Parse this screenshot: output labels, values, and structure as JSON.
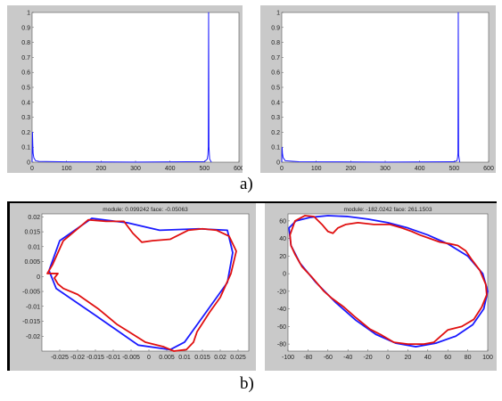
{
  "captions": {
    "a": "a)",
    "b": "b)"
  },
  "colors": {
    "panel": "#c9c9c9",
    "axes": "#ffffff",
    "series_blue": "#1a1aff",
    "series_red": "#e01010"
  },
  "chart_data": [
    {
      "id": "a-left",
      "type": "line",
      "title": "",
      "xlim": [
        0,
        600
      ],
      "ylim": [
        0,
        1
      ],
      "xticks": [
        "0",
        "100",
        "200",
        "300",
        "400",
        "500",
        "600"
      ],
      "yticks": [
        "0",
        "0.1",
        "0.2",
        "0.3",
        "0.4",
        "0.5",
        "0.6",
        "0.7",
        "0.8",
        "0.9",
        "1"
      ],
      "series": [
        {
          "color": "#1a1aff",
          "points": [
            [
              0,
              0.0
            ],
            [
              1,
              0.2
            ],
            [
              2,
              0.12
            ],
            [
              3,
              0.06
            ],
            [
              5,
              0.03
            ],
            [
              10,
              0.01
            ],
            [
              20,
              0.005
            ],
            [
              100,
              0.002
            ],
            [
              300,
              0.001
            ],
            [
              500,
              0.004
            ],
            [
              508,
              0.02
            ],
            [
              510,
              0.05
            ],
            [
              511,
              0.1
            ],
            [
              512,
              1.0
            ],
            [
              513,
              0.1
            ],
            [
              515,
              0.02
            ],
            [
              520,
              0.0
            ]
          ]
        }
      ]
    },
    {
      "id": "a-right",
      "type": "line",
      "title": "",
      "xlim": [
        0,
        600
      ],
      "ylim": [
        0,
        1
      ],
      "xticks": [
        "0",
        "100",
        "200",
        "300",
        "400",
        "500",
        "600"
      ],
      "yticks": [
        "0",
        "0.1",
        "0.2",
        "0.3",
        "0.4",
        "0.5",
        "0.6",
        "0.7",
        "0.8",
        "0.9",
        "1"
      ],
      "series": [
        {
          "color": "#1a1aff",
          "points": [
            [
              0,
              0.0
            ],
            [
              1,
              0.1
            ],
            [
              2,
              0.06
            ],
            [
              4,
              0.03
            ],
            [
              10,
              0.01
            ],
            [
              50,
              0.003
            ],
            [
              300,
              0.001
            ],
            [
              500,
              0.003
            ],
            [
              508,
              0.01
            ],
            [
              510,
              0.03
            ],
            [
              511,
              0.06
            ],
            [
              512,
              1.0
            ],
            [
              513,
              0.05
            ],
            [
              516,
              0.0
            ]
          ]
        }
      ]
    },
    {
      "id": "b-left",
      "type": "line",
      "title": "module: 0.099242 face: -0.05063",
      "xlim": [
        -0.03,
        0.028
      ],
      "ylim": [
        -0.025,
        0.021
      ],
      "xticks": [
        "-0.025",
        "-0.02",
        "-0.015",
        "-0.01",
        "-0.005",
        "0",
        "0.005",
        "0.01",
        "0.015",
        "0.02",
        "0.025"
      ],
      "yticks": [
        "0.02",
        "0.015",
        "0.01",
        "0.005",
        "0",
        "-0.005",
        "-0.01",
        "-0.015",
        "-0.02"
      ],
      "series": [
        {
          "color": "#1a1aff",
          "closed": true,
          "points": [
            [
              -0.028,
              0.002
            ],
            [
              -0.025,
              0.012
            ],
            [
              -0.016,
              0.0195
            ],
            [
              -0.006,
              0.018
            ],
            [
              0.003,
              0.0155
            ],
            [
              0.014,
              0.016
            ],
            [
              0.022,
              0.0155
            ],
            [
              0.0235,
              0.008
            ],
            [
              0.022,
              -0.002
            ],
            [
              0.016,
              -0.012
            ],
            [
              0.01,
              -0.022
            ],
            [
              0.006,
              -0.0245
            ],
            [
              -0.003,
              -0.023
            ],
            [
              -0.015,
              -0.013
            ],
            [
              -0.026,
              -0.004
            ]
          ]
        },
        {
          "color": "#e01010",
          "closed": true,
          "points": [
            [
              -0.027,
              0.004
            ],
            [
              -0.024,
              0.012
            ],
            [
              -0.017,
              0.019
            ],
            [
              -0.012,
              0.0185
            ],
            [
              -0.007,
              0.0185
            ],
            [
              -0.0045,
              0.0145
            ],
            [
              -0.002,
              0.0115
            ],
            [
              0.001,
              0.012
            ],
            [
              0.006,
              0.0125
            ],
            [
              0.011,
              0.0155
            ],
            [
              0.015,
              0.016
            ],
            [
              0.019,
              0.0155
            ],
            [
              0.0225,
              0.0135
            ],
            [
              0.0245,
              0.0085
            ],
            [
              0.023,
              0.001
            ],
            [
              0.02,
              -0.007
            ],
            [
              0.017,
              -0.012
            ],
            [
              0.0135,
              -0.0185
            ],
            [
              0.0125,
              -0.022
            ],
            [
              0.0105,
              -0.0245
            ],
            [
              0.007,
              -0.025
            ],
            [
              0.004,
              -0.0235
            ],
            [
              -0.001,
              -0.022
            ],
            [
              -0.005,
              -0.019
            ],
            [
              -0.009,
              -0.016
            ],
            [
              -0.014,
              -0.011
            ],
            [
              -0.02,
              -0.006
            ],
            [
              -0.024,
              -0.004
            ],
            [
              -0.0255,
              -0.0025
            ],
            [
              -0.0265,
              -0.0005
            ],
            [
              -0.0255,
              0.001
            ],
            [
              -0.0285,
              0.001
            ]
          ]
        }
      ]
    },
    {
      "id": "b-right",
      "type": "line",
      "title": "module: -182.0242 face: 261.1503",
      "xlim": [
        -100,
        100
      ],
      "ylim": [
        -88,
        68
      ],
      "xticks": [
        "-100",
        "-80",
        "-60",
        "-40",
        "-20",
        "0",
        "20",
        "40",
        "60",
        "80",
        "100"
      ],
      "yticks": [
        "60",
        "40",
        "20",
        "0",
        "-20",
        "-40",
        "-60",
        "-80"
      ],
      "series": [
        {
          "color": "#1a1aff",
          "closed": true,
          "points": [
            [
              -99,
              52
            ],
            [
              -92,
              60
            ],
            [
              -78,
              64
            ],
            [
              -60,
              66
            ],
            [
              -40,
              65
            ],
            [
              -20,
              62
            ],
            [
              0,
              58
            ],
            [
              20,
              52
            ],
            [
              40,
              44
            ],
            [
              60,
              34
            ],
            [
              80,
              20
            ],
            [
              95,
              0
            ],
            [
              100,
              -20
            ],
            [
              96,
              -40
            ],
            [
              85,
              -58
            ],
            [
              68,
              -71
            ],
            [
              48,
              -79
            ],
            [
              28,
              -83
            ],
            [
              8,
              -79
            ],
            [
              -12,
              -69
            ],
            [
              -32,
              -53
            ],
            [
              -52,
              -33
            ],
            [
              -72,
              -10
            ],
            [
              -88,
              12
            ],
            [
              -97,
              32
            ]
          ]
        },
        {
          "color": "#e01010",
          "closed": true,
          "points": [
            [
              -98,
              44
            ],
            [
              -93,
              60
            ],
            [
              -83,
              66
            ],
            [
              -74,
              65
            ],
            [
              -66,
              56
            ],
            [
              -60,
              48
            ],
            [
              -55,
              46
            ],
            [
              -50,
              52
            ],
            [
              -42,
              56
            ],
            [
              -30,
              58
            ],
            [
              -14,
              56
            ],
            [
              2,
              56
            ],
            [
              14,
              52
            ],
            [
              24,
              48
            ],
            [
              32,
              44
            ],
            [
              42,
              40
            ],
            [
              52,
              36
            ],
            [
              62,
              34
            ],
            [
              70,
              32
            ],
            [
              78,
              26
            ],
            [
              84,
              16
            ],
            [
              92,
              4
            ],
            [
              98,
              -12
            ],
            [
              99,
              -24
            ],
            [
              94,
              -38
            ],
            [
              86,
              -52
            ],
            [
              74,
              -60
            ],
            [
              60,
              -64
            ],
            [
              54,
              -70
            ],
            [
              46,
              -78
            ],
            [
              36,
              -80
            ],
            [
              20,
              -80
            ],
            [
              6,
              -78
            ],
            [
              -6,
              -70
            ],
            [
              -18,
              -63
            ],
            [
              -32,
              -50
            ],
            [
              -44,
              -38
            ],
            [
              -56,
              -28
            ],
            [
              -64,
              -20
            ],
            [
              -76,
              -4
            ],
            [
              -86,
              8
            ],
            [
              -93,
              22
            ],
            [
              -97,
              32
            ]
          ]
        }
      ]
    }
  ]
}
